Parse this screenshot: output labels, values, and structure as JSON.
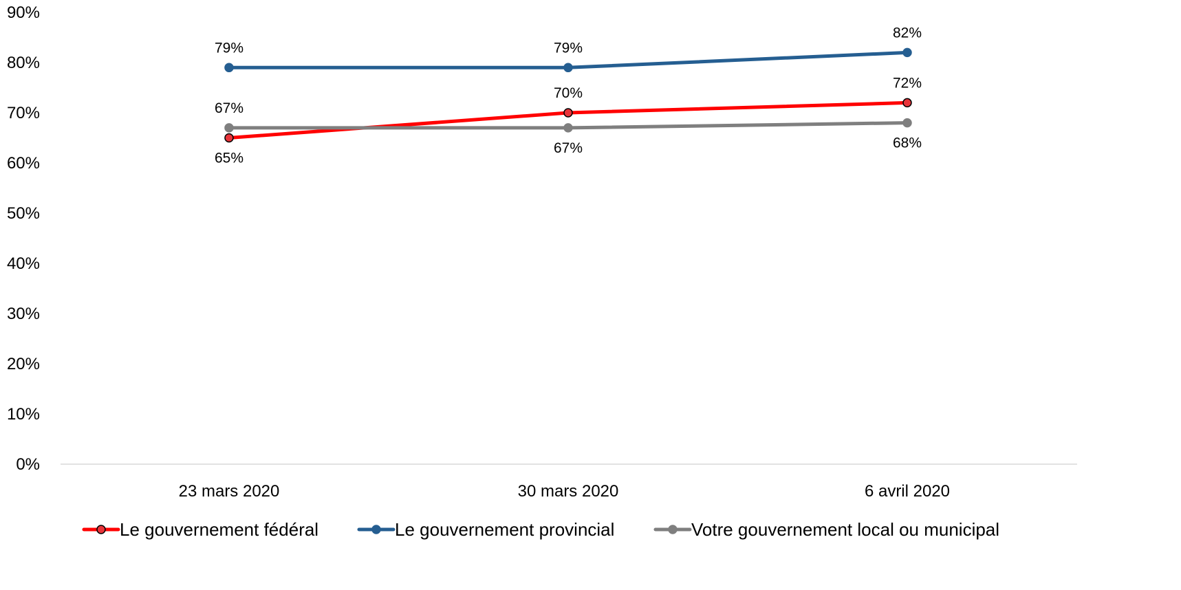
{
  "chart_data": {
    "type": "line",
    "title": "",
    "xlabel": "",
    "ylabel": "",
    "categories": [
      "23 mars 2020",
      "30 mars 2020",
      "6 avril 2020"
    ],
    "ylim": [
      0,
      90
    ],
    "yticks": [
      "0%",
      "10%",
      "20%",
      "30%",
      "40%",
      "50%",
      "60%",
      "70%",
      "80%",
      "90%"
    ],
    "grid": false,
    "legend_position": "bottom",
    "series": [
      {
        "name": "Le gouvernement fédéral",
        "values": [
          65,
          70,
          72
        ],
        "labels": [
          "65%",
          "70%",
          "72%"
        ],
        "label_pos": [
          "below",
          "above",
          "above"
        ],
        "color": "#ff0000",
        "marker_fill": "#e8343a",
        "marker_stroke": "#000000"
      },
      {
        "name": "Le gouvernement provincial",
        "values": [
          79,
          79,
          82
        ],
        "labels": [
          "79%",
          "79%",
          "82%"
        ],
        "label_pos": [
          "above",
          "above",
          "above"
        ],
        "color": "#255e91",
        "marker_fill": "#255e91",
        "marker_stroke": "#255e91"
      },
      {
        "name": "Votre gouvernement local ou municipal",
        "values": [
          67,
          67,
          68
        ],
        "labels": [
          "67%",
          "67%",
          "68%"
        ],
        "label_pos": [
          "above",
          "below",
          "below"
        ],
        "color": "#7f7f7f",
        "marker_fill": "#7f7f7f",
        "marker_stroke": "#7f7f7f"
      }
    ]
  }
}
